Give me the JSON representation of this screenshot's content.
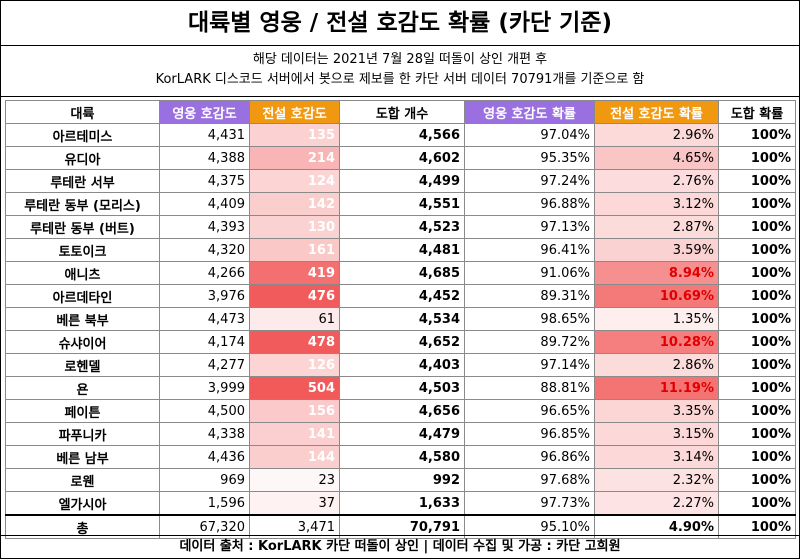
{
  "title": "대륙별 영웅 / 전설 호감도 확률 (카단 기준)",
  "subtitle_line1": "해당 데이터는 2021년 7월 28일 떠돌이 상인 개편 후",
  "subtitle_line2": "KorLARK 디스코드 서버에서 봇으로 제보를 한 카단 서버 데이터 70791개를 기준으로 함",
  "headers": [
    "대륙",
    "영웅 호감도",
    "전설 호감도",
    "도합 개수",
    "영웅 호감도 확률",
    "전설 호감도 확률",
    "도합 확률"
  ],
  "rows": [
    {
      "name": "아르테미스",
      "hero": "4,431",
      "legend": "135",
      "total": "4,566",
      "hero_pct": "97.04%",
      "legend_pct": "2.96%",
      "total_pct": "100%",
      "legend_val": 135,
      "legend_pct_val": 2.96
    },
    {
      "name": "유디아",
      "hero": "4,388",
      "legend": "214",
      "total": "4,602",
      "hero_pct": "95.35%",
      "legend_pct": "4.65%",
      "total_pct": "100%",
      "legend_val": 214,
      "legend_pct_val": 4.65
    },
    {
      "name": "루테란 서부",
      "hero": "4,375",
      "legend": "124",
      "total": "4,499",
      "hero_pct": "97.24%",
      "legend_pct": "2.76%",
      "total_pct": "100%",
      "legend_val": 124,
      "legend_pct_val": 2.76
    },
    {
      "name": "루테란 동부 (모리스)",
      "hero": "4,409",
      "legend": "142",
      "total": "4,551",
      "hero_pct": "96.88%",
      "legend_pct": "3.12%",
      "total_pct": "100%",
      "legend_val": 142,
      "legend_pct_val": 3.12
    },
    {
      "name": "루테란 동부 (버트)",
      "hero": "4,393",
      "legend": "130",
      "total": "4,523",
      "hero_pct": "97.13%",
      "legend_pct": "2.87%",
      "total_pct": "100%",
      "legend_val": 130,
      "legend_pct_val": 2.87
    },
    {
      "name": "토토이크",
      "hero": "4,320",
      "legend": "161",
      "total": "4,481",
      "hero_pct": "96.41%",
      "legend_pct": "3.59%",
      "total_pct": "100%",
      "legend_val": 161,
      "legend_pct_val": 3.59
    },
    {
      "name": "애니츠",
      "hero": "4,266",
      "legend": "419",
      "total": "4,685",
      "hero_pct": "91.06%",
      "legend_pct": "8.94%",
      "total_pct": "100%",
      "legend_val": 419,
      "legend_pct_val": 8.94
    },
    {
      "name": "아르데타인",
      "hero": "3,976",
      "legend": "476",
      "total": "4,452",
      "hero_pct": "89.31%",
      "legend_pct": "10.69%",
      "total_pct": "100%",
      "legend_val": 476,
      "legend_pct_val": 10.69
    },
    {
      "name": "베른 북부",
      "hero": "4,473",
      "legend": "61",
      "total": "4,534",
      "hero_pct": "98.65%",
      "legend_pct": "1.35%",
      "total_pct": "100%",
      "legend_val": 61,
      "legend_pct_val": 1.35
    },
    {
      "name": "슈샤이어",
      "hero": "4,174",
      "legend": "478",
      "total": "4,652",
      "hero_pct": "89.72%",
      "legend_pct": "10.28%",
      "total_pct": "100%",
      "legend_val": 478,
      "legend_pct_val": 10.28
    },
    {
      "name": "로헨델",
      "hero": "4,277",
      "legend": "126",
      "total": "4,403",
      "hero_pct": "97.14%",
      "legend_pct": "2.86%",
      "total_pct": "100%",
      "legend_val": 126,
      "legend_pct_val": 2.86
    },
    {
      "name": "욘",
      "hero": "3,999",
      "legend": "504",
      "total": "4,503",
      "hero_pct": "88.81%",
      "legend_pct": "11.19%",
      "total_pct": "100%",
      "legend_val": 504,
      "legend_pct_val": 11.19
    },
    {
      "name": "페이튼",
      "hero": "4,500",
      "legend": "156",
      "total": "4,656",
      "hero_pct": "96.65%",
      "legend_pct": "3.35%",
      "total_pct": "100%",
      "legend_val": 156,
      "legend_pct_val": 3.35
    },
    {
      "name": "파푸니카",
      "hero": "4,338",
      "legend": "141",
      "total": "4,479",
      "hero_pct": "96.85%",
      "legend_pct": "3.15%",
      "total_pct": "100%",
      "legend_val": 141,
      "legend_pct_val": 3.15
    },
    {
      "name": "베른 남부",
      "hero": "4,436",
      "legend": "144",
      "total": "4,580",
      "hero_pct": "96.86%",
      "legend_pct": "3.14%",
      "total_pct": "100%",
      "legend_val": 144,
      "legend_pct_val": 3.14
    },
    {
      "name": "로웬",
      "hero": "969",
      "legend": "23",
      "total": "992",
      "hero_pct": "97.68%",
      "legend_pct": "2.32%",
      "total_pct": "100%",
      "legend_val": 23,
      "legend_pct_val": 2.32
    },
    {
      "name": "엘가시아",
      "hero": "1,596",
      "legend": "37",
      "total": "1,633",
      "hero_pct": "97.73%",
      "legend_pct": "2.27%",
      "total_pct": "100%",
      "legend_val": 37,
      "legend_pct_val": 2.27
    }
  ],
  "total_row": {
    "name": "총",
    "hero": "67,320",
    "legend": "3,471",
    "total": "70,791",
    "hero_pct": "95.10%",
    "legend_pct": "4.90%",
    "total_pct": "100%"
  },
  "footer": "데이터 출처 : KorLARK 카단 떠돌이 상인   |   데이터 수집 및 가공 : 카단 고희원",
  "colors": {
    "hero_header": "#9a6fe0",
    "legend_header": "#f0980f",
    "heat_max": "#f25a5a",
    "hot_text": "#e00000"
  }
}
